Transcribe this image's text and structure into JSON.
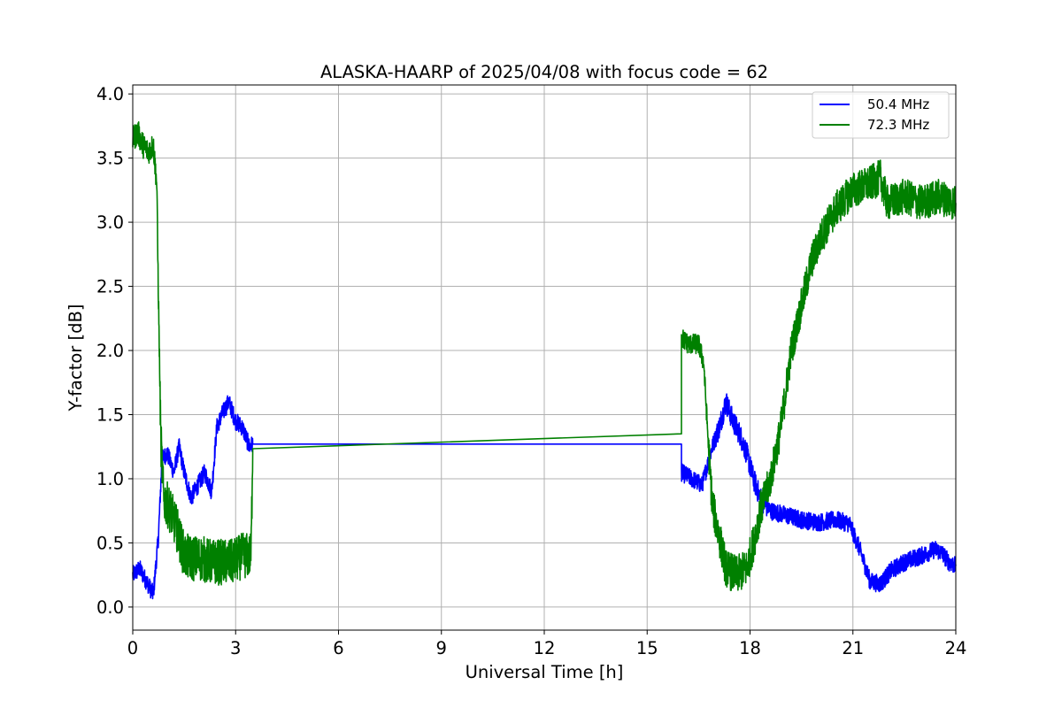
{
  "chart_data": {
    "type": "line",
    "title": "ALASKA-HAARP of 2025/04/08 with focus code = 62",
    "xlabel": "Universal Time [h]",
    "ylabel": "Y-factor [dB]",
    "xlim": [
      0,
      24
    ],
    "ylim": [
      -0.18,
      4.07
    ],
    "xticks": [
      0,
      3,
      6,
      9,
      12,
      15,
      18,
      21,
      24
    ],
    "yticks": [
      0.0,
      0.5,
      1.0,
      1.5,
      2.0,
      2.5,
      3.0,
      3.5,
      4.0
    ],
    "grid": true,
    "legend_position": "top-right",
    "series": [
      {
        "name": "50.4 MHz",
        "color": "#0000ff",
        "points": [
          [
            0.0,
            0.25
          ],
          [
            0.2,
            0.3
          ],
          [
            0.4,
            0.2
          ],
          [
            0.6,
            0.1
          ],
          [
            0.75,
            0.55
          ],
          [
            0.85,
            1.15
          ],
          [
            1.0,
            1.2
          ],
          [
            1.2,
            1.05
          ],
          [
            1.35,
            1.25
          ],
          [
            1.5,
            1.05
          ],
          [
            1.7,
            0.85
          ],
          [
            1.9,
            0.95
          ],
          [
            2.1,
            1.05
          ],
          [
            2.3,
            0.9
          ],
          [
            2.45,
            1.4
          ],
          [
            2.6,
            1.5
          ],
          [
            2.8,
            1.6
          ],
          [
            3.0,
            1.45
          ],
          [
            3.2,
            1.4
          ],
          [
            3.4,
            1.25
          ],
          [
            3.5,
            1.27
          ],
          [
            16.0,
            1.27
          ],
          [
            16.0,
            1.05
          ],
          [
            16.3,
            1.0
          ],
          [
            16.6,
            0.95
          ],
          [
            16.9,
            1.25
          ],
          [
            17.1,
            1.4
          ],
          [
            17.3,
            1.6
          ],
          [
            17.5,
            1.45
          ],
          [
            17.7,
            1.35
          ],
          [
            17.9,
            1.2
          ],
          [
            18.1,
            1.0
          ],
          [
            18.3,
            0.85
          ],
          [
            18.6,
            0.75
          ],
          [
            19.0,
            0.72
          ],
          [
            19.5,
            0.68
          ],
          [
            20.0,
            0.66
          ],
          [
            20.5,
            0.68
          ],
          [
            20.9,
            0.65
          ],
          [
            21.2,
            0.45
          ],
          [
            21.5,
            0.2
          ],
          [
            21.8,
            0.18
          ],
          [
            22.1,
            0.28
          ],
          [
            22.5,
            0.35
          ],
          [
            23.0,
            0.4
          ],
          [
            23.4,
            0.45
          ],
          [
            23.6,
            0.42
          ],
          [
            23.8,
            0.35
          ],
          [
            24.0,
            0.32
          ]
        ]
      },
      {
        "name": "72.3 MHz",
        "color": "#008000",
        "points": [
          [
            0.0,
            3.65
          ],
          [
            0.15,
            3.7
          ],
          [
            0.3,
            3.6
          ],
          [
            0.45,
            3.55
          ],
          [
            0.6,
            3.6
          ],
          [
            0.7,
            3.3
          ],
          [
            0.75,
            2.4
          ],
          [
            0.82,
            1.3
          ],
          [
            0.9,
            0.85
          ],
          [
            1.1,
            0.75
          ],
          [
            1.3,
            0.6
          ],
          [
            1.5,
            0.4
          ],
          [
            1.7,
            0.38
          ],
          [
            2.0,
            0.38
          ],
          [
            2.3,
            0.35
          ],
          [
            2.6,
            0.35
          ],
          [
            2.9,
            0.35
          ],
          [
            3.2,
            0.4
          ],
          [
            3.45,
            0.4
          ],
          [
            3.5,
            1.3
          ],
          [
            16.0,
            1.35
          ],
          [
            16.0,
            2.1
          ],
          [
            16.2,
            2.05
          ],
          [
            16.5,
            2.05
          ],
          [
            16.65,
            1.9
          ],
          [
            16.8,
            1.2
          ],
          [
            16.9,
            0.8
          ],
          [
            17.1,
            0.55
          ],
          [
            17.3,
            0.3
          ],
          [
            17.6,
            0.25
          ],
          [
            17.9,
            0.3
          ],
          [
            18.1,
            0.5
          ],
          [
            18.3,
            0.75
          ],
          [
            18.6,
            1.0
          ],
          [
            18.9,
            1.4
          ],
          [
            19.2,
            2.0
          ],
          [
            19.5,
            2.35
          ],
          [
            19.8,
            2.7
          ],
          [
            20.1,
            2.9
          ],
          [
            20.5,
            3.1
          ],
          [
            21.0,
            3.25
          ],
          [
            21.5,
            3.3
          ],
          [
            21.8,
            3.35
          ],
          [
            22.0,
            3.15
          ],
          [
            22.5,
            3.2
          ],
          [
            23.0,
            3.15
          ],
          [
            23.5,
            3.2
          ],
          [
            24.0,
            3.15
          ]
        ]
      }
    ]
  }
}
